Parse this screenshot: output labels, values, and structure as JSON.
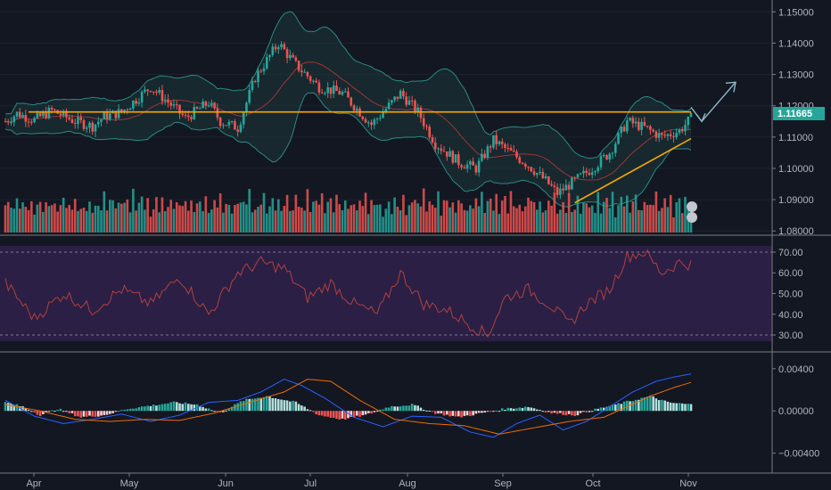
{
  "colors": {
    "background": "#131722",
    "bull": "#26a69a",
    "bear": "#ef5350",
    "bb_band": "#2a8a83",
    "bb_basis": "#a03535",
    "bb_fill": "#1c3a3c",
    "orange_line": "#f7a600",
    "arrow": "#8fb8c8",
    "rsi_bg": "#2b1f45",
    "rsi_line": "#b0413e",
    "macd_line": "#2962ff",
    "signal_line": "#ef6c00",
    "hist_pos": "#26a69a",
    "hist_pos_weak": "#b2dfdb",
    "hist_neg": "#ef5350",
    "hist_neg_weak": "#ffcdd2",
    "axis_text": "#b2b5be",
    "separator": "#787b86"
  },
  "price_tag": "1.11665",
  "markers": [
    "2",
    "8"
  ],
  "chart_data": [
    {
      "type": "candlestick",
      "title": "",
      "xlabel": "",
      "ylabel": "",
      "x_ticks": [
        "Apr",
        "May",
        "Jun",
        "Jul",
        "Aug",
        "Sep",
        "Oct",
        "Nov"
      ],
      "y_ticks": [
        "1.08000",
        "1.09000",
        "1.10000",
        "1.11000",
        "1.12000",
        "1.13000",
        "1.14000",
        "1.15000"
      ],
      "ylim": [
        1.0795,
        1.1515
      ],
      "trend_path": [
        [
          0,
          1.115
        ],
        [
          4,
          1.1175
        ],
        [
          10,
          1.1155
        ],
        [
          16,
          1.1185
        ],
        [
          24,
          1.115
        ],
        [
          30,
          1.1135
        ],
        [
          34,
          1.1165
        ],
        [
          40,
          1.118
        ],
        [
          50,
          1.126
        ],
        [
          55,
          1.122
        ],
        [
          62,
          1.116
        ],
        [
          70,
          1.121
        ],
        [
          74,
          1.115
        ],
        [
          80,
          1.113
        ],
        [
          86,
          1.129
        ],
        [
          94,
          1.14
        ],
        [
          100,
          1.133
        ],
        [
          108,
          1.126
        ],
        [
          116,
          1.124
        ],
        [
          126,
          1.114
        ],
        [
          136,
          1.124
        ],
        [
          142,
          1.118
        ],
        [
          148,
          1.108
        ],
        [
          156,
          1.102
        ],
        [
          162,
          1.1
        ],
        [
          168,
          1.109
        ],
        [
          174,
          1.105
        ],
        [
          180,
          1.101
        ],
        [
          186,
          1.096
        ],
        [
          190,
          1.092
        ],
        [
          196,
          1.096
        ],
        [
          202,
          1.1
        ],
        [
          208,
          1.105
        ],
        [
          214,
          1.115
        ],
        [
          220,
          1.113
        ],
        [
          226,
          1.11
        ],
        [
          232,
          1.112
        ],
        [
          236,
          1.116
        ]
      ],
      "volume_levels": [
        0.8,
        0.6,
        0.7,
        0.5,
        0.9,
        0.4,
        0.6,
        0.7,
        0.5,
        0.8,
        0.3,
        0.6,
        0.7,
        0.45,
        0.9,
        0.5,
        0.6,
        0.75,
        0.4,
        0.55
      ],
      "horizontal_line": 1.118,
      "rising_line": [
        [
          196,
          1.089
        ],
        [
          236,
          1.1095
        ]
      ],
      "price_label_value": 1.11665
    },
    {
      "type": "line",
      "series": [
        {
          "values_path": [
            [
              0,
              55
            ],
            [
              10,
              38
            ],
            [
              20,
              50
            ],
            [
              30,
              42
            ],
            [
              40,
              52
            ],
            [
              50,
              45
            ],
            [
              60,
              58
            ],
            [
              70,
              40
            ],
            [
              80,
              60
            ],
            [
              88,
              65
            ],
            [
              96,
              62
            ],
            [
              104,
              48
            ],
            [
              112,
              55
            ],
            [
              120,
              45
            ],
            [
              128,
              40
            ],
            [
              136,
              60
            ],
            [
              144,
              45
            ],
            [
              152,
              42
            ],
            [
              160,
              35
            ],
            [
              166,
              30
            ],
            [
              172,
              48
            ],
            [
              180,
              52
            ],
            [
              188,
              44
            ],
            [
              194,
              35
            ],
            [
              200,
              45
            ],
            [
              208,
              52
            ],
            [
              214,
              68
            ],
            [
              220,
              70
            ],
            [
              226,
              60
            ],
            [
              232,
              65
            ],
            [
              236,
              64
            ]
          ]
        }
      ],
      "y_ticks": [
        "30.00",
        "40.00",
        "50.00",
        "60.00",
        "70.00"
      ],
      "ylim": [
        27,
        73
      ]
    },
    {
      "type": "bar",
      "series_path": [
        [
          0,
          0.0008
        ],
        [
          6,
          0.0004
        ],
        [
          12,
          -0.0004
        ],
        [
          18,
          0.0002
        ],
        [
          26,
          -0.0006
        ],
        [
          34,
          -0.0004
        ],
        [
          42,
          0.0002
        ],
        [
          50,
          0.0005
        ],
        [
          58,
          0.0008
        ],
        [
          66,
          0.0006
        ],
        [
          74,
          -0.0002
        ],
        [
          82,
          0.001
        ],
        [
          90,
          0.0014
        ],
        [
          100,
          0.0008
        ],
        [
          108,
          -0.0004
        ],
        [
          116,
          -0.0008
        ],
        [
          124,
          -0.0004
        ],
        [
          132,
          0.0004
        ],
        [
          140,
          0.0006
        ],
        [
          148,
          -0.0002
        ],
        [
          156,
          -0.0006
        ],
        [
          164,
          -0.0002
        ],
        [
          172,
          0.0002
        ],
        [
          180,
          0.0004
        ],
        [
          188,
          -0.0002
        ],
        [
          196,
          -0.0004
        ],
        [
          204,
          0.0002
        ],
        [
          210,
          0.0006
        ],
        [
          216,
          0.001
        ],
        [
          222,
          0.0014
        ],
        [
          228,
          0.0008
        ],
        [
          236,
          0.0006
        ]
      ],
      "macd_path": [
        [
          0,
          0.001
        ],
        [
          10,
          -0.0005
        ],
        [
          20,
          -0.0012
        ],
        [
          30,
          -0.0008
        ],
        [
          40,
          -0.0003
        ],
        [
          50,
          -0.001
        ],
        [
          60,
          -0.0004
        ],
        [
          70,
          0.0008
        ],
        [
          80,
          0.001
        ],
        [
          88,
          0.0018
        ],
        [
          96,
          0.003
        ],
        [
          102,
          0.0024
        ],
        [
          110,
          0.0012
        ],
        [
          120,
          -0.0006
        ],
        [
          130,
          -0.0015
        ],
        [
          140,
          -0.0005
        ],
        [
          150,
          -0.0006
        ],
        [
          160,
          -0.002
        ],
        [
          168,
          -0.0025
        ],
        [
          176,
          -0.0012
        ],
        [
          184,
          -0.0004
        ],
        [
          192,
          -0.0018
        ],
        [
          200,
          -0.001
        ],
        [
          208,
          0.0004
        ],
        [
          216,
          0.0018
        ],
        [
          224,
          0.0028
        ],
        [
          230,
          0.0032
        ],
        [
          236,
          0.0035
        ]
      ],
      "signal_path": [
        [
          0,
          0.0006
        ],
        [
          12,
          0.0
        ],
        [
          24,
          -0.0008
        ],
        [
          36,
          -0.001
        ],
        [
          48,
          -0.0008
        ],
        [
          60,
          -0.0009
        ],
        [
          72,
          -0.0002
        ],
        [
          84,
          0.0008
        ],
        [
          96,
          0.0018
        ],
        [
          104,
          0.003
        ],
        [
          112,
          0.0028
        ],
        [
          122,
          0.001
        ],
        [
          134,
          -0.0008
        ],
        [
          146,
          -0.0012
        ],
        [
          158,
          -0.0014
        ],
        [
          170,
          -0.0022
        ],
        [
          182,
          -0.0016
        ],
        [
          194,
          -0.001
        ],
        [
          206,
          -0.0006
        ],
        [
          214,
          0.0004
        ],
        [
          222,
          0.0014
        ],
        [
          230,
          0.0022
        ],
        [
          236,
          0.0027
        ]
      ],
      "y_ticks": [
        "0.00400",
        "0.00000",
        "−0.00400"
      ],
      "ylim": [
        -0.0058,
        0.0055
      ]
    }
  ]
}
